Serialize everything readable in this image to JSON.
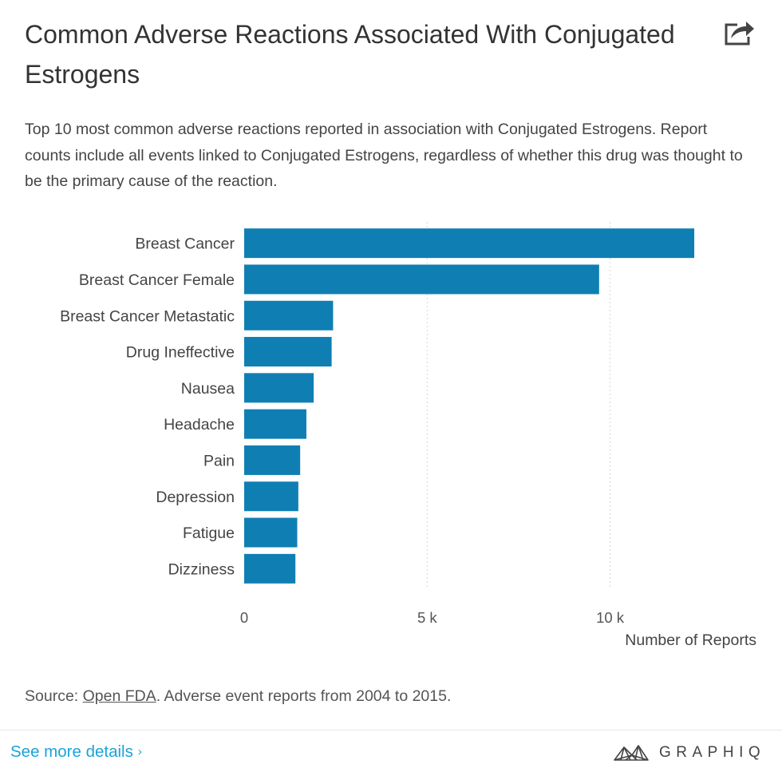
{
  "header": {
    "title": "Common Adverse Reactions Associated With Conjugated Estrogens",
    "subtitle": "Top 10 most common adverse reactions reported in association with Conjugated Estrogens. Report counts include all events linked to Conjugated Estrogens, regardless of whether this drug was thought to be the primary cause of the reaction.",
    "share_icon": "share-icon"
  },
  "chart_data": {
    "type": "bar",
    "orientation": "horizontal",
    "title": "Common Adverse Reactions Associated With Conjugated Estrogens",
    "categories": [
      "Breast Cancer",
      "Breast Cancer Female",
      "Breast Cancer Metastatic",
      "Drug Ineffective",
      "Nausea",
      "Headache",
      "Pain",
      "Depression",
      "Fatigue",
      "Dizziness"
    ],
    "values": [
      12300,
      9700,
      2430,
      2390,
      1900,
      1700,
      1530,
      1480,
      1450,
      1400
    ],
    "xlabel": "Number of Reports",
    "ylabel": "",
    "xlim": [
      0,
      14000
    ],
    "xticks": [
      0,
      5000,
      10000
    ],
    "xtick_labels": [
      "0",
      "5 k",
      "10 k"
    ],
    "grid": "vertical dotted",
    "legend": "none",
    "bar_color": "#0f7fb3"
  },
  "source": {
    "prefix": "Source: ",
    "link_text": "Open FDA",
    "suffix": ". Adverse event reports from 2004 to 2015."
  },
  "footer": {
    "see_more": "See more details",
    "see_more_chevron": "›",
    "brand_name": "GRAPHIQ",
    "link_color": "#1aa3d9"
  }
}
